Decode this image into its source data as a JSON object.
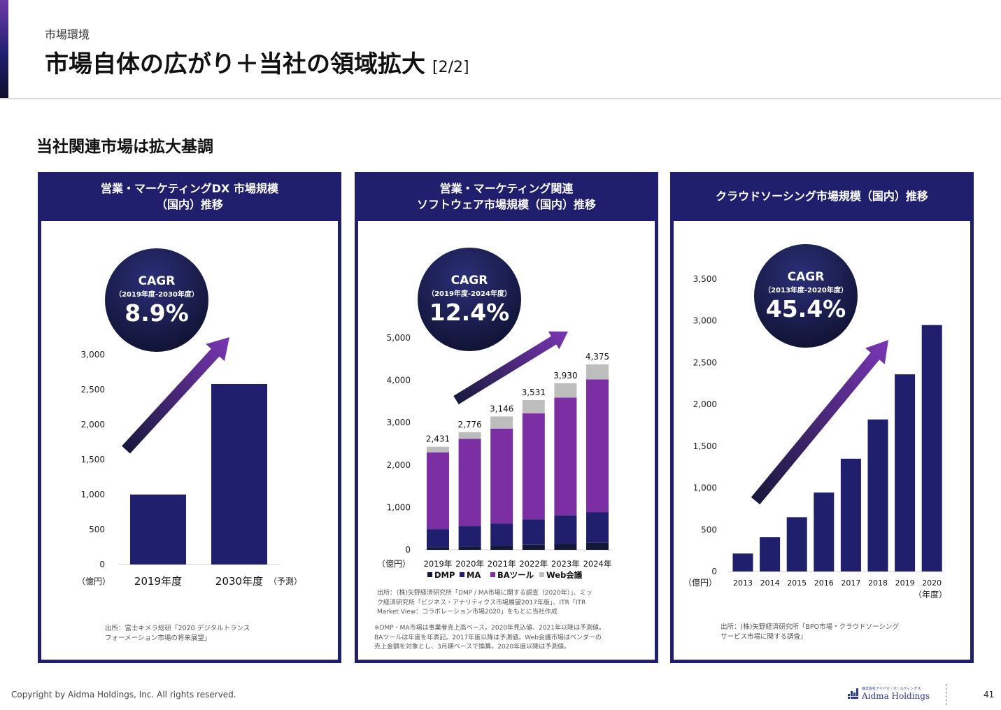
{
  "header": {
    "kicker": "市場環境",
    "title": "市場自体の広がり＋当社の領域拡大",
    "pager": "[2/2]"
  },
  "section_title": "当社関連市場は拡大基調",
  "colors": {
    "navy": "#1f1f6e",
    "purple": "#7b2fa2",
    "dark": "#141838",
    "gray": "#bdbdbd",
    "arrow_start": "#141838",
    "arrow_end": "#7a36b4"
  },
  "panels": [
    {
      "title_lines": [
        "営業・マーケティングDX 市場規模",
        "（国内）推移"
      ],
      "cagr": {
        "label": "CAGR",
        "period": "（2019年度-2030年度）",
        "value": "8.9%"
      },
      "unit": "（億円）",
      "forecast_note": "（予測）",
      "source_lines": [
        "出所：富士キメラ総研「2020 デジタルトランス",
        "フォーメーション市場の将来展望」"
      ]
    },
    {
      "title_lines": [
        "営業・マーケティング関連",
        "ソフトウェア市場規模（国内）推移"
      ],
      "cagr": {
        "label": "CAGR",
        "period": "（2019年度-2024年度）",
        "value": "12.4%"
      },
      "unit": "（億円）",
      "source_lines": [
        "出所：（株)矢野経済研究所「DMP / MA市場に関する調査（2020年）」、ミッ",
        "ク経済研究所「ビジネス・アナリティクス市場展望2017年版」、ITR「ITR",
        "Market View：コラボレーション市場2020」をもとに当社作成"
      ],
      "note_lines": [
        "※DMP・MA市場は事業者売上高ベース。2020年見込値、2021年以降は予測値。",
        "BAツールは年度を年表記。2017年度以降は予測値。Web会議市場はベンダーの",
        "売上金額を対象とし、3月期ベースで換算。2020年度以降は予測値。"
      ]
    },
    {
      "title_lines": [
        "クラウドソーシング市場規模（国内）推移"
      ],
      "cagr": {
        "label": "CAGR",
        "period": "（2013年度-2020年度）",
        "value": "45.4%"
      },
      "unit": "（億円）",
      "x_unit": "（年度）",
      "source_lines": [
        "出所：(株)矢野経済研究所「BPO市場・クラウドソーシング",
        "サービス市場に関する調査」"
      ]
    }
  ],
  "chart_data": [
    {
      "type": "bar",
      "categories": [
        "2019年度",
        "2030年度"
      ],
      "values": [
        1000,
        2580
      ],
      "ylim": [
        0,
        3000
      ],
      "yticks": [
        0,
        500,
        1000,
        1500,
        2000,
        2500,
        3000
      ],
      "ytick_labels": [
        "0",
        "500",
        "1,000",
        "1,500",
        "2,000",
        "2,500",
        "3,000"
      ]
    },
    {
      "type": "bar",
      "stacked": true,
      "categories": [
        "2019年",
        "2020年",
        "2021年",
        "2022年",
        "2023年",
        "2024年"
      ],
      "series": [
        {
          "name": "DMP",
          "values": [
            60,
            80,
            100,
            120,
            140,
            170
          ]
        },
        {
          "name": "MA",
          "values": [
            430,
            480,
            520,
            600,
            670,
            720
          ]
        },
        {
          "name": "BAツール",
          "values": [
            1810,
            2060,
            2240,
            2500,
            2780,
            3130
          ]
        },
        {
          "name": "Web会議",
          "values": [
            131,
            156,
            286,
            311,
            340,
            355
          ]
        }
      ],
      "totals": [
        2431,
        2776,
        3146,
        3531,
        3930,
        4375
      ],
      "total_labels": [
        "2,431",
        "2,776",
        "3,146",
        "3,531",
        "3,930",
        "4,375"
      ],
      "ylim": [
        0,
        5000
      ],
      "yticks": [
        0,
        1000,
        2000,
        3000,
        4000,
        5000
      ],
      "ytick_labels": [
        "0",
        "1,000",
        "2,000",
        "3,000",
        "4,000",
        "5,000"
      ],
      "legend_position": "bottom"
    },
    {
      "type": "bar",
      "categories": [
        "2013",
        "2014",
        "2015",
        "2016",
        "2017",
        "2018",
        "2019",
        "2020"
      ],
      "values": [
        215,
        410,
        650,
        945,
        1350,
        1820,
        2360,
        2950
      ],
      "ylim": [
        0,
        3500
      ],
      "yticks": [
        0,
        500,
        1000,
        1500,
        2000,
        2500,
        3000,
        3500
      ],
      "ytick_labels": [
        "0",
        "500",
        "1,000",
        "1,500",
        "2,000",
        "2,500",
        "3,000",
        "3,500"
      ]
    }
  ],
  "footer": {
    "copyright": "Copyright by Aidma Holdings, Inc. All rights reserved.",
    "logo_small": "株式会社アイドマ・ホールディングス",
    "logo_name": "Aidma Holdings",
    "page_number": "41"
  }
}
